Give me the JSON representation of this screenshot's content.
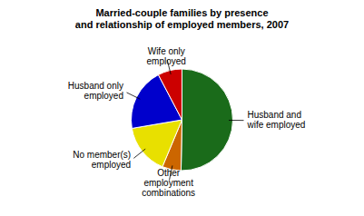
{
  "chart_data": {
    "type": "pie",
    "title": "Married-couple families by presence\nand relationship of employed members, 2007",
    "categories": [
      "Husband and\nwife employed",
      "Other\nemployment\ncombinations",
      "No member(s)\nemployed",
      "Husband only\nemployed",
      "Wife only\nemployed"
    ],
    "values": [
      50.3,
      6.0,
      16.0,
      20.0,
      7.7
    ],
    "colors": [
      "#1a6b1a",
      "#cc6600",
      "#e8e000",
      "#0000cc",
      "#cc0000"
    ]
  }
}
